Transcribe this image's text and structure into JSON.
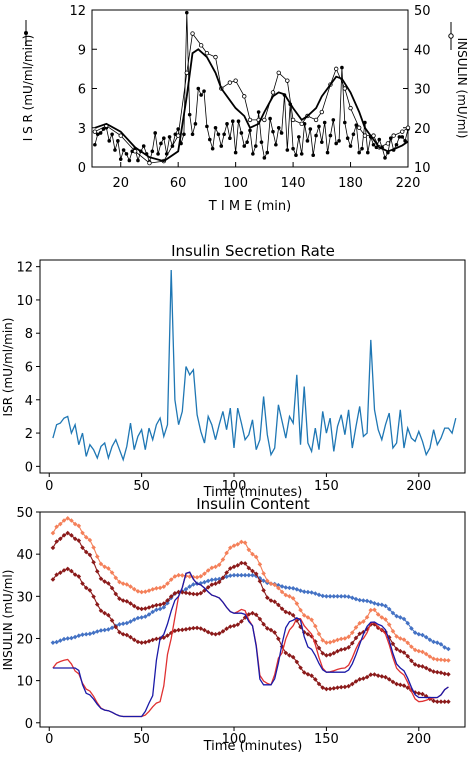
{
  "chart_data": [
    {
      "type": "line",
      "title": "",
      "xlabel": "T I M E (min)",
      "ylabel_left": "I S R (mU/ml/min)",
      "ylabel_right": "INSULIN (mU/ml)",
      "xlim": [
        0,
        220
      ],
      "ylim_left": [
        0,
        12
      ],
      "ylim_right": [
        10,
        50
      ],
      "x_ticks": [
        20,
        60,
        100,
        140,
        180,
        220
      ],
      "y_ticks_left": [
        0,
        3,
        6,
        9,
        12
      ],
      "y_ticks_right": [
        10,
        20,
        30,
        40,
        50
      ],
      "series": [
        {
          "axis": "left",
          "marker": "filled",
          "x": [
            2,
            4,
            6,
            8,
            10,
            12,
            14,
            16,
            18,
            20,
            22,
            24,
            26,
            28,
            30,
            32,
            34,
            36,
            38,
            40,
            42,
            44,
            46,
            48,
            50,
            52,
            54,
            56,
            58,
            60,
            62,
            64,
            66,
            68,
            70,
            72,
            74,
            76,
            78,
            80,
            82,
            84,
            86,
            88,
            90,
            92,
            94,
            96,
            98,
            100,
            102,
            104,
            106,
            108,
            110,
            112,
            114,
            116,
            118,
            120,
            122,
            124,
            126,
            128,
            130,
            132,
            134,
            136,
            138,
            140,
            142,
            144,
            146,
            148,
            150,
            152,
            154,
            156,
            158,
            160,
            162,
            164,
            166,
            168,
            170,
            172,
            174,
            176,
            178,
            180,
            182,
            184,
            186,
            188,
            190,
            192,
            194,
            196,
            198,
            200,
            202,
            204,
            206,
            208,
            210,
            212,
            214,
            216,
            218,
            220
          ],
          "values": [
            1.7,
            2.5,
            2.6,
            2.9,
            3.0,
            2.0,
            2.5,
            1.3,
            2.0,
            0.6,
            1.3,
            1.0,
            0.5,
            1.2,
            1.4,
            0.5,
            1.2,
            1.6,
            1.0,
            0.4,
            1.2,
            2.6,
            1.0,
            1.8,
            2.2,
            1.0,
            2.3,
            1.6,
            2.5,
            2.9,
            1.8,
            2.5,
            11.8,
            4.0,
            2.5,
            3.3,
            6.0,
            5.5,
            5.8,
            3.1,
            2.1,
            1.4,
            3.0,
            2.5,
            1.6,
            2.5,
            3.3,
            2.2,
            3.5,
            1.1,
            3.5,
            2.6,
            1.6,
            1.9,
            2.8,
            1.0,
            1.6,
            4.2,
            1.9,
            0.7,
            1.1,
            3.7,
            2.7,
            1.7,
            3.0,
            2.6,
            5.5,
            1.3,
            4.8,
            1.4,
            0.9,
            2.3,
            1.0,
            3.3,
            2.0,
            2.9,
            0.9,
            2.4,
            3.1,
            1.9,
            3.4,
            1.1,
            2.4,
            3.6,
            1.8,
            2.0,
            7.6,
            3.4,
            2.2,
            1.6,
            2.5,
            3.2,
            1.1,
            1.4,
            3.4,
            1.1,
            2.3,
            1.7,
            1.5,
            2.1,
            1.5,
            0.7,
            1.1,
            2.2,
            1.3,
            1.7,
            2.3,
            2.3,
            2.0,
            2.9
          ]
        },
        {
          "axis": "right",
          "marker": "open",
          "x": [
            2,
            10,
            20,
            30,
            40,
            50,
            60,
            66,
            70,
            76,
            80,
            86,
            90,
            96,
            100,
            106,
            110,
            116,
            120,
            126,
            130,
            136,
            140,
            146,
            150,
            156,
            160,
            166,
            170,
            176,
            180,
            186,
            190,
            196,
            200,
            206,
            210,
            216,
            220
          ],
          "values": [
            19.0,
            20.5,
            18.0,
            14.0,
            11.0,
            11.5,
            18.0,
            34.0,
            44.0,
            41.0,
            39.0,
            38.0,
            30.0,
            31.5,
            32.0,
            28.0,
            22.0,
            22.0,
            22.0,
            29.0,
            34.0,
            32.0,
            22.0,
            21.0,
            23.0,
            22.0,
            24.0,
            31.0,
            35.0,
            30.0,
            25.0,
            20.0,
            18.0,
            18.0,
            15.0,
            16.0,
            18.0,
            19.0,
            20.0
          ]
        },
        {
          "axis": "right",
          "marker": "none",
          "x": [
            2,
            10,
            20,
            30,
            40,
            50,
            60,
            66,
            70,
            74,
            80,
            86,
            90,
            96,
            100,
            106,
            110,
            116,
            120,
            126,
            130,
            134,
            140,
            146,
            150,
            156,
            160,
            166,
            170,
            174,
            180,
            186,
            190,
            196,
            200,
            206,
            210,
            216,
            220
          ],
          "values": [
            20.0,
            21.0,
            19.0,
            15.0,
            12.5,
            11.5,
            14.0,
            28.0,
            39.0,
            40.0,
            38.0,
            34.0,
            30.0,
            27.0,
            25.0,
            23.0,
            20.0,
            21.0,
            24.0,
            28.0,
            29.0,
            28.5,
            25.0,
            22.0,
            23.0,
            25.0,
            28.0,
            31.0,
            33.0,
            32.5,
            29.0,
            24.0,
            20.0,
            17.0,
            15.0,
            14.0,
            14.5,
            15.5,
            16.5
          ]
        }
      ]
    },
    {
      "type": "line",
      "title": "Insulin Secretion Rate",
      "xlabel": "Time (minutes)",
      "ylabel": "ISR (mU/ml/min)",
      "xlim": [
        -5,
        225
      ],
      "ylim": [
        -0.4,
        12.4
      ],
      "x_ticks": [
        0,
        50,
        100,
        150,
        200
      ],
      "y_ticks": [
        0,
        2,
        4,
        6,
        8,
        10,
        12
      ],
      "color": "#1f77b4",
      "series": [
        {
          "x": [
            2,
            4,
            6,
            8,
            10,
            12,
            14,
            16,
            18,
            20,
            22,
            24,
            26,
            28,
            30,
            32,
            34,
            36,
            38,
            40,
            42,
            44,
            46,
            48,
            50,
            52,
            54,
            56,
            58,
            60,
            62,
            64,
            66,
            68,
            70,
            72,
            74,
            76,
            78,
            80,
            82,
            84,
            86,
            88,
            90,
            92,
            94,
            96,
            98,
            100,
            102,
            104,
            106,
            108,
            110,
            112,
            114,
            116,
            118,
            120,
            122,
            124,
            126,
            128,
            130,
            132,
            134,
            136,
            138,
            140,
            142,
            144,
            146,
            148,
            150,
            152,
            154,
            156,
            158,
            160,
            162,
            164,
            166,
            168,
            170,
            172,
            174,
            176,
            178,
            180,
            182,
            184,
            186,
            188,
            190,
            192,
            194,
            196,
            198,
            200,
            202,
            204,
            206,
            208,
            210,
            212,
            214,
            216,
            218,
            220
          ],
          "values": [
            1.7,
            2.5,
            2.6,
            2.9,
            3.0,
            2.0,
            2.5,
            1.3,
            2.0,
            0.6,
            1.3,
            1.0,
            0.5,
            1.2,
            1.4,
            0.5,
            1.2,
            1.6,
            1.0,
            0.4,
            1.2,
            2.6,
            1.0,
            1.8,
            2.2,
            1.0,
            2.3,
            1.6,
            2.5,
            2.9,
            1.8,
            2.5,
            11.8,
            4.0,
            2.5,
            3.3,
            6.0,
            5.5,
            5.8,
            3.1,
            2.1,
            1.4,
            3.0,
            2.5,
            1.6,
            2.5,
            3.3,
            2.2,
            3.5,
            1.1,
            3.5,
            2.6,
            1.6,
            1.9,
            2.8,
            1.0,
            1.6,
            4.2,
            1.9,
            0.7,
            1.1,
            3.7,
            2.7,
            1.7,
            3.0,
            2.6,
            5.5,
            1.3,
            4.8,
            1.4,
            0.9,
            2.3,
            1.0,
            3.3,
            2.0,
            2.9,
            0.9,
            2.4,
            3.1,
            1.9,
            3.4,
            1.1,
            2.4,
            3.6,
            1.8,
            2.0,
            7.6,
            3.4,
            2.2,
            1.6,
            2.5,
            3.2,
            1.1,
            1.4,
            3.4,
            1.1,
            2.3,
            1.7,
            1.5,
            2.1,
            1.5,
            0.7,
            1.1,
            2.2,
            1.3,
            1.7,
            2.3,
            2.3,
            2.0,
            2.9
          ]
        }
      ]
    },
    {
      "type": "line",
      "title": "Insulin Content",
      "xlabel": "Time (minutes)",
      "ylabel": "INSULIN (mU/ml)",
      "xlim": [
        -5,
        225
      ],
      "ylim": [
        -1,
        50
      ],
      "x_ticks": [
        0,
        50,
        100,
        150,
        200
      ],
      "y_ticks": [
        0,
        10,
        20,
        30,
        40,
        50
      ],
      "series": [
        {
          "color": "#4472c4",
          "marker": "diamond",
          "x": [
            2,
            10,
            20,
            30,
            40,
            50,
            60,
            70,
            80,
            90,
            100,
            110,
            120,
            130,
            140,
            150,
            160,
            170,
            180,
            190,
            200,
            210,
            216
          ],
          "values": [
            19,
            20,
            21,
            22,
            23.5,
            25,
            27,
            31,
            33,
            34,
            35,
            35,
            33,
            32,
            31,
            30,
            30,
            29,
            28,
            25,
            21,
            19,
            17.5
          ]
        },
        {
          "color": "#f4805a",
          "marker": "diamond",
          "x": [
            2,
            5,
            10,
            15,
            20,
            30,
            40,
            50,
            60,
            70,
            80,
            90,
            100,
            105,
            110,
            120,
            130,
            140,
            150,
            160,
            170,
            175,
            180,
            190,
            200,
            210,
            216
          ],
          "values": [
            45,
            47,
            48.5,
            47,
            44,
            37,
            33,
            31,
            32,
            35,
            34.5,
            37,
            42,
            43,
            40,
            33,
            30,
            25,
            19,
            20,
            24,
            27,
            25,
            20,
            17,
            15,
            14.8
          ]
        },
        {
          "color": "#8b1a1a",
          "marker": "diamond",
          "x": [
            2,
            5,
            10,
            15,
            20,
            30,
            40,
            50,
            60,
            70,
            80,
            90,
            100,
            105,
            110,
            120,
            130,
            140,
            150,
            160,
            170,
            175,
            180,
            190,
            200,
            210,
            216
          ],
          "values": [
            41.5,
            43.5,
            45,
            43.5,
            40.5,
            33.5,
            29,
            27,
            28,
            31,
            30.5,
            33,
            37,
            38,
            36,
            29,
            26,
            21,
            16,
            17.5,
            21.5,
            23.5,
            22,
            17,
            13.5,
            12,
            11.5
          ]
        },
        {
          "color": "#8b1a1a",
          "marker": "diamond",
          "x": [
            2,
            5,
            10,
            15,
            20,
            30,
            40,
            50,
            60,
            70,
            80,
            90,
            100,
            110,
            120,
            130,
            140,
            150,
            160,
            170,
            175,
            180,
            190,
            200,
            210,
            216
          ],
          "values": [
            34,
            35.5,
            36.5,
            35,
            32,
            26,
            21,
            19,
            20,
            22,
            22.5,
            21,
            23,
            26,
            22,
            16,
            11.5,
            8,
            8.5,
            10.5,
            11.5,
            11,
            9,
            7,
            5,
            5
          ]
        },
        {
          "color": "#e03131",
          "marker": "none",
          "x": [
            2,
            5,
            10,
            15,
            20,
            30,
            40,
            50,
            60,
            66,
            70,
            75,
            80,
            90,
            100,
            105,
            110,
            115,
            120,
            125,
            130,
            135,
            140,
            150,
            160,
            170,
            175,
            180,
            190,
            200,
            210,
            216
          ],
          "values": [
            13,
            14.5,
            15,
            12,
            8,
            3,
            1.5,
            1.5,
            5,
            20,
            30,
            36,
            33,
            30,
            26,
            27,
            23,
            10,
            9,
            16,
            22,
            25,
            22,
            12,
            13,
            20,
            24,
            22,
            12,
            5,
            6,
            8.5
          ]
        },
        {
          "color": "#1a1aa8",
          "marker": "none",
          "x": [
            2,
            10,
            15,
            20,
            30,
            40,
            50,
            55,
            60,
            70,
            75,
            80,
            90,
            100,
            105,
            110,
            115,
            120,
            130,
            135,
            140,
            150,
            160,
            175,
            180,
            190,
            200,
            210,
            216
          ],
          "values": [
            13,
            13,
            13,
            7,
            3,
            1.5,
            1.5,
            5,
            20,
            30,
            36,
            33,
            30,
            26,
            26,
            23,
            9,
            9,
            24,
            25,
            18,
            12,
            12,
            24,
            23,
            13,
            6,
            6,
            8.5
          ]
        }
      ]
    }
  ]
}
